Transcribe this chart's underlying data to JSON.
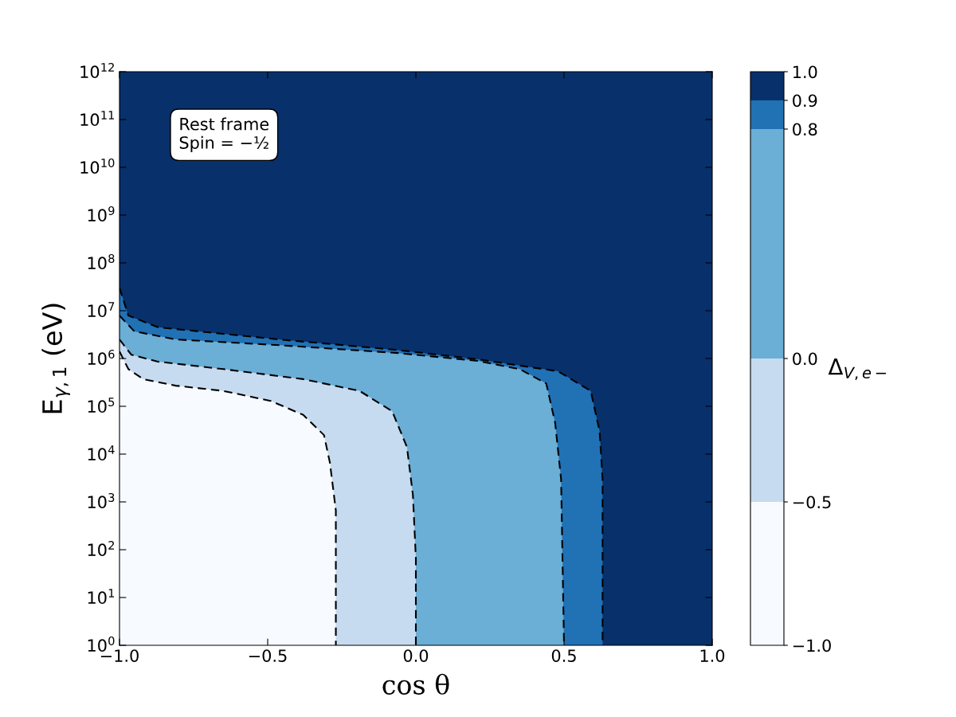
{
  "chart_data": {
    "type": "line",
    "xlabel": "cos θ",
    "ylabel": "E$_{γ,1}$ (eV)",
    "clabel": "Δ$_{V,e−}$",
    "annotations": [
      "Rest frame\nSpin = −½"
    ],
    "log": "y",
    "line_style": "dashed",
    "legend": false,
    "grid": false,
    "xlim": [
      -1,
      1
    ],
    "xticks": [
      {
        "value": -1,
        "label": "−1.0"
      },
      {
        "value": -0.5,
        "label": "−0.5"
      },
      {
        "value": 0,
        "label": "0.0"
      },
      {
        "value": 0.5,
        "label": "0.5"
      },
      {
        "value": 1,
        "label": "1.0"
      }
    ],
    "ylim": [
      1,
      1000000000000.0
    ],
    "yticks": [
      {
        "value": 1,
        "label": "10$^{0}$"
      },
      {
        "value": 10,
        "label": "10$^{1}$"
      },
      {
        "value": 100,
        "label": "10$^{2}$"
      },
      {
        "value": 1000,
        "label": "10$^{3}$"
      },
      {
        "value": 10000.0,
        "label": "10$^{4}$"
      },
      {
        "value": 100000.0,
        "label": "10$^{5}$"
      },
      {
        "value": 1000000.0,
        "label": "10$^{6}$"
      },
      {
        "value": 10000000.0,
        "label": "10$^{7}$"
      },
      {
        "value": 100000000.0,
        "label": "10$^{8}$"
      },
      {
        "value": 1000000000.0,
        "label": "10$^{9}$"
      },
      {
        "value": 10000000000.0,
        "label": "10$^{10}$"
      },
      {
        "value": 100000000000.0,
        "label": "10$^{11}$"
      },
      {
        "value": 1000000000000.0,
        "label": "10$^{12}$"
      }
    ],
    "clim": [
      -1,
      1
    ],
    "cticks": [
      {
        "value": -1,
        "label": "−1.0"
      },
      {
        "value": -0.5,
        "label": "−0.5"
      },
      {
        "value": 0,
        "label": "0.0"
      },
      {
        "value": 0.8,
        "label": "0.8"
      },
      {
        "value": 0.9,
        "label": "0.9"
      },
      {
        "value": 1,
        "label": "1.0"
      }
    ],
    "colors": [
      "#f7fbff",
      "#c6dbef",
      "#6baed6",
      "#2171b5",
      "#08306b"
    ],
    "series": [
      {
        "color": "#000000",
        "x": [
          -1,
          -0.97,
          -0.92,
          -0.81,
          -0.65,
          -0.49,
          -0.38,
          -0.31,
          -0.29,
          -0.27,
          -0.27,
          -0.27
        ],
        "values": [
          1400000.0,
          600000.0,
          370000.0,
          270000.0,
          210000.0,
          130000.0,
          66000.0,
          25000.0,
          6600.0,
          660,
          66,
          1
        ]
      },
      {
        "color": "#000000",
        "x": [
          -1,
          -0.96,
          -0.87,
          -0.65,
          -0.38,
          -0.19,
          -0.08,
          -0.03,
          -0.01,
          0,
          0
        ],
        "values": [
          2500000.0,
          1200000.0,
          860000.0,
          600000.0,
          370000.0,
          210000.0,
          79000.0,
          14000.0,
          1400.0,
          66,
          1
        ]
      },
      {
        "color": "#000000",
        "x": [
          -1,
          -0.95,
          -0.81,
          -0.46,
          -0.06,
          0.21,
          0.35,
          0.44,
          0.47,
          0.49,
          0.5
        ],
        "values": [
          7900000.0,
          3700000.0,
          2500000.0,
          1900000.0,
          1300000.0,
          890000.0,
          600000.0,
          300000.0,
          45000.0,
          3000.0,
          1
        ]
      },
      {
        "color": "#000000",
        "x": [
          -1,
          -0.97,
          -0.87,
          -0.46,
          -0.06,
          0.21,
          0.48,
          0.59,
          0.62,
          0.63,
          0.63
        ],
        "values": [
          30000000.0,
          7900000.0,
          4500000.0,
          2500000.0,
          1500000.0,
          960000.0,
          540000.0,
          210000.0,
          30000.0,
          3000.0,
          1
        ]
      }
    ]
  }
}
